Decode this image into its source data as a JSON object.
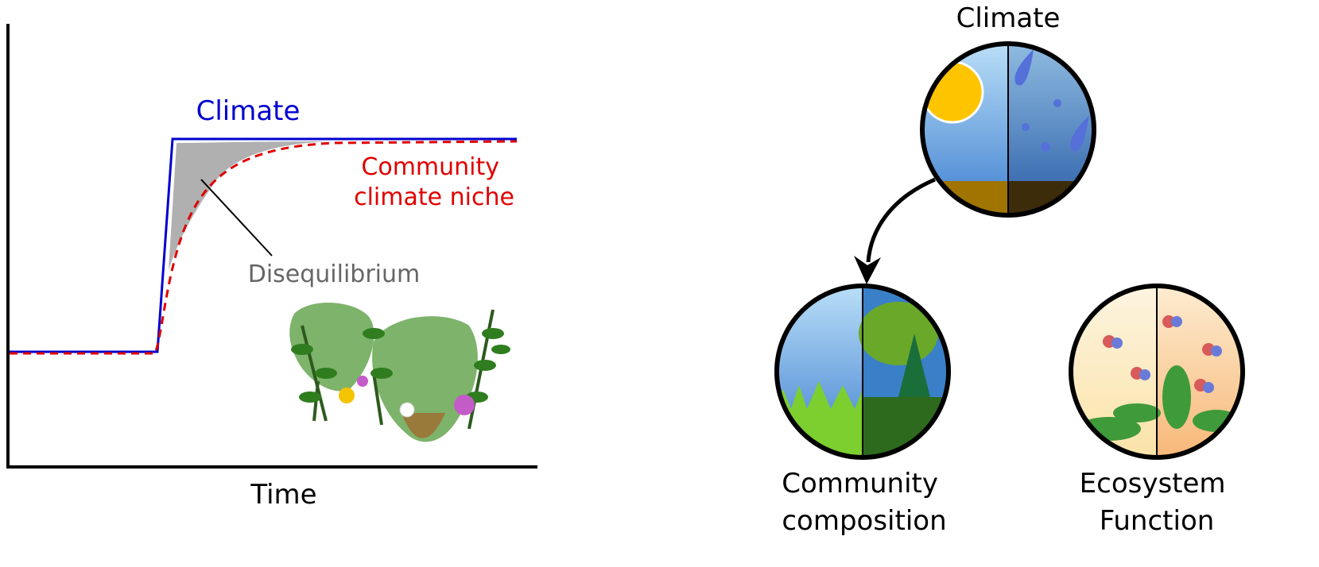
{
  "left_panel": {
    "climate_label": "Climate",
    "niche_label": [
      "Community",
      "climate niche"
    ],
    "disequilibrium_label": "Disequilibrium",
    "x_axis_label": "Time"
  },
  "right_panel": {
    "climate": "Climate",
    "community": [
      "Community",
      "composition"
    ],
    "ecosystem": [
      "Ecosystem",
      "Function"
    ]
  }
}
